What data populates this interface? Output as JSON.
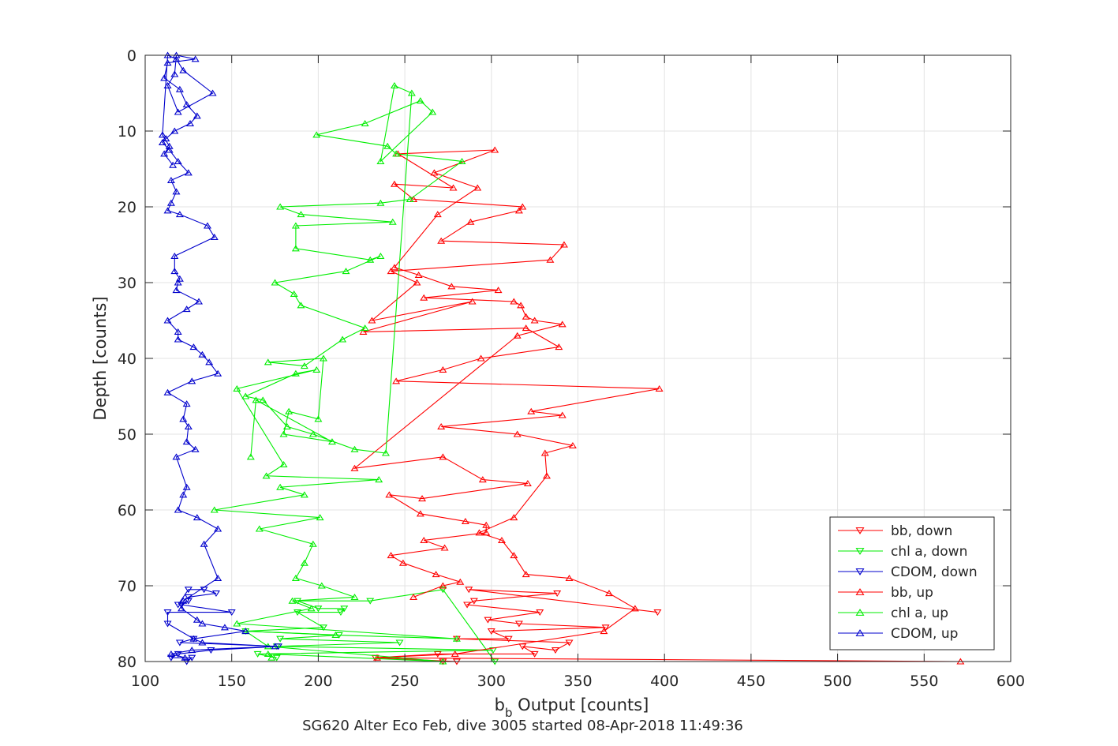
{
  "chart_data": {
    "type": "line",
    "title": "SG620 Alter Eco Feb, dive 3005 started 08-Apr-2018 11:49:36",
    "xlabel_main": "b",
    "xlabel_sub": "b",
    "xlabel_rest": " Output [counts]",
    "ylabel": "Depth [counts]",
    "xlim": [
      100,
      600
    ],
    "ylim": [
      0,
      80
    ],
    "y_reversed": true,
    "grid": true,
    "legend_position": "inside bottom-right",
    "xticks": [
      100,
      150,
      200,
      250,
      300,
      350,
      400,
      450,
      500,
      550,
      600
    ],
    "yticks": [
      0,
      10,
      20,
      30,
      40,
      50,
      60,
      70,
      80
    ],
    "series": [
      {
        "name": "bb, down",
        "color": "#ff0000",
        "marker": "triangle-down",
        "x": [
          272,
          280,
          233,
          269,
          325,
          318,
          337,
          345,
          280,
          310,
          300,
          366,
          316,
          298,
          328,
          286,
          290,
          338,
          287,
          396
        ],
        "y": [
          80,
          80,
          79.5,
          79,
          79,
          78,
          78.5,
          77.5,
          77,
          77,
          76,
          75.5,
          75,
          74.5,
          73.5,
          72.5,
          72,
          71,
          70.5,
          73.5
        ]
      },
      {
        "name": "chl a, down",
        "color": "#00ee00",
        "marker": "triangle-down",
        "x": [
          176,
          165,
          301,
          176,
          247,
          178,
          212,
          158,
          203,
          188,
          213,
          215,
          200,
          188,
          230,
          272,
          302
        ],
        "y": [
          79.5,
          79,
          78.5,
          78,
          77.5,
          77,
          76.5,
          76,
          75.5,
          73.5,
          73.5,
          73,
          73,
          72,
          72,
          70.5,
          80
        ]
      },
      {
        "name": "CDOM, down",
        "color": "#0000cc",
        "marker": "triangle-down",
        "x": [
          124,
          127,
          115,
          119,
          138,
          177,
          120,
          128,
          113,
          113,
          150,
          121,
          125,
          125,
          141,
          134,
          125,
          119
        ],
        "y": [
          80,
          79.5,
          79.5,
          79,
          78.5,
          78,
          77.5,
          77,
          75,
          73.5,
          73.5,
          72.5,
          72,
          71.5,
          71,
          70.5,
          70.5,
          72.5
        ]
      },
      {
        "name": "bb, up",
        "color": "#ff0000",
        "marker": "triangle-up",
        "x": [
          571,
          234,
          279,
          365,
          383,
          368,
          345,
          320,
          313,
          306,
          293,
          313,
          332,
          331,
          347,
          315,
          271,
          341,
          323,
          397,
          245,
          272,
          294,
          339,
          320,
          226,
          289,
          231,
          257,
          242,
          334,
          342,
          271,
          288,
          316,
          318,
          255,
          244,
          278,
          246,
          302,
          267,
          292,
          269,
          244,
          258,
          277,
          304,
          261,
          313,
          317,
          320,
          325,
          341,
          315,
          221,
          272,
          295,
          321,
          260,
          241,
          259,
          285,
          297,
          297,
          261,
          273,
          242,
          249,
          268,
          282,
          272,
          255
        ],
        "y": [
          80,
          79.5,
          79,
          76,
          73,
          71,
          69,
          68.5,
          66,
          64,
          63,
          61,
          55.5,
          52.5,
          51.5,
          50,
          49,
          47.5,
          47,
          44,
          43,
          41.5,
          40,
          38.5,
          36,
          36.5,
          32.5,
          35,
          30,
          28.5,
          27,
          25,
          24.5,
          22,
          20.5,
          20,
          19,
          17,
          17.5,
          13,
          12.5,
          15.5,
          17.5,
          21,
          28,
          29,
          30.5,
          31,
          32,
          32.5,
          33,
          34.5,
          35,
          35.5,
          37,
          54.5,
          53,
          56,
          56.5,
          58.5,
          58,
          60.5,
          61.5,
          62,
          63,
          64,
          65,
          66,
          67,
          68.5,
          69.5,
          70,
          71.5
        ]
      },
      {
        "name": "chl a, up",
        "color": "#00ee00",
        "marker": "triangle-up",
        "x": [
          173,
          171,
          272,
          171,
          158,
          210,
          280,
          153,
          196,
          185,
          221,
          202,
          187,
          192,
          197,
          166,
          201,
          140,
          192,
          178,
          235,
          170,
          180,
          153,
          199,
          187,
          158,
          168,
          182,
          197,
          221,
          239,
          254,
          244,
          236,
          266,
          259,
          227,
          199,
          240,
          245,
          283,
          253,
          236,
          178,
          190,
          243,
          187,
          187,
          230,
          236,
          216,
          175,
          186,
          190,
          227,
          214,
          192,
          171,
          203,
          200,
          183,
          180,
          208,
          164,
          161
        ],
        "y": [
          79.5,
          79,
          80,
          78,
          76,
          76.5,
          77,
          75,
          73,
          72,
          71.5,
          70,
          69,
          67,
          64.5,
          62.5,
          61,
          60,
          58,
          57,
          56,
          55.5,
          54,
          44,
          41.5,
          42,
          45,
          45.5,
          49,
          50,
          52,
          52.5,
          5,
          4,
          14,
          7.5,
          6,
          9,
          10.5,
          12,
          13,
          14,
          19,
          19.5,
          20,
          21,
          22,
          22.5,
          25.5,
          27,
          26.5,
          28.5,
          30,
          31.5,
          33,
          36,
          37.5,
          41,
          40.5,
          40,
          48,
          47,
          50,
          51,
          45.5,
          53
        ]
      },
      {
        "name": "CDOM, up",
        "color": "#0000cc",
        "marker": "triangle-up",
        "x": [
          123,
          115,
          127,
          175,
          133,
          128,
          158,
          146,
          133,
          130,
          121,
          122,
          142,
          134,
          142,
          130,
          119,
          122,
          124,
          118,
          129,
          124,
          125,
          122,
          124,
          113,
          127,
          142,
          137,
          133,
          128,
          119,
          119,
          113,
          124,
          131,
          118,
          119,
          120,
          117,
          117,
          140,
          136,
          120,
          113,
          115,
          118,
          115,
          125,
          119,
          114,
          110,
          112,
          117,
          126,
          130,
          124,
          120,
          111,
          113,
          129,
          118,
          117,
          113,
          119,
          139,
          122,
          118,
          113,
          110,
          114,
          111,
          116
        ],
        "y": [
          79.5,
          79,
          78.5,
          78,
          77.5,
          77,
          76,
          75.5,
          75,
          74.5,
          73,
          72,
          69,
          64.5,
          62.5,
          61,
          60,
          58,
          57,
          53,
          52,
          51,
          49,
          48,
          46,
          44.5,
          43,
          42,
          40.5,
          39.5,
          38.5,
          37.5,
          36.5,
          35,
          33.5,
          32.5,
          31,
          30,
          29.5,
          28.5,
          26.5,
          24,
          22.5,
          21,
          20.5,
          19.5,
          18,
          16.5,
          15.5,
          14,
          12.5,
          11.5,
          11,
          10,
          9,
          8,
          6.5,
          4.5,
          3,
          1,
          0.5,
          0,
          2.5,
          4,
          7.5,
          5,
          2,
          0.5,
          0,
          10.5,
          12,
          13,
          14.5
        ]
      }
    ]
  }
}
